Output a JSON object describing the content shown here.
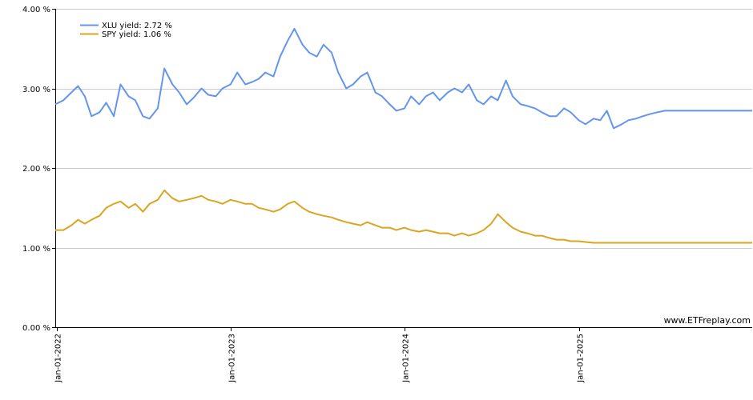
{
  "watermark": "www.ETFreplay.com",
  "chart_data": {
    "type": "line",
    "ylim": [
      0,
      4
    ],
    "y_ticks": [
      {
        "value": 0,
        "label": "0.00 %"
      },
      {
        "value": 1,
        "label": "1.00 %"
      },
      {
        "value": 2,
        "label": "2.00 %"
      },
      {
        "value": 3,
        "label": "3.00 %"
      },
      {
        "value": 4,
        "label": "4.00 %"
      }
    ],
    "x_range": [
      "2021-12-29",
      "2025-12-31"
    ],
    "x_ticks": [
      {
        "date": "2022-01-01",
        "label": "Jan-01-2022"
      },
      {
        "date": "2023-01-01",
        "label": "Jan-01-2023"
      },
      {
        "date": "2024-01-01",
        "label": "Jan-01-2024"
      },
      {
        "date": "2025-01-01",
        "label": "Jan-01-2025"
      }
    ],
    "grid": true,
    "legend": "top-left",
    "series": [
      {
        "name": "XLU yield: 2.72 %",
        "color": "#6495ed",
        "x": [
          "2021-12-29",
          "2022-01-15",
          "2022-02-01",
          "2022-02-15",
          "2022-03-01",
          "2022-03-15",
          "2022-04-01",
          "2022-04-15",
          "2022-05-01",
          "2022-05-15",
          "2022-06-01",
          "2022-06-15",
          "2022-07-01",
          "2022-07-15",
          "2022-08-01",
          "2022-08-15",
          "2022-09-01",
          "2022-09-15",
          "2022-10-01",
          "2022-10-15",
          "2022-11-01",
          "2022-11-15",
          "2022-12-01",
          "2022-12-15",
          "2023-01-01",
          "2023-01-15",
          "2023-02-01",
          "2023-02-15",
          "2023-03-01",
          "2023-03-15",
          "2023-04-01",
          "2023-04-15",
          "2023-05-01",
          "2023-05-15",
          "2023-06-01",
          "2023-06-15",
          "2023-07-01",
          "2023-07-15",
          "2023-08-01",
          "2023-08-15",
          "2023-09-01",
          "2023-09-15",
          "2023-10-01",
          "2023-10-15",
          "2023-11-01",
          "2023-11-15",
          "2023-12-01",
          "2023-12-15",
          "2024-01-01",
          "2024-01-15",
          "2024-02-01",
          "2024-02-15",
          "2024-03-01",
          "2024-03-15",
          "2024-04-01",
          "2024-04-15",
          "2024-05-01",
          "2024-05-15",
          "2024-06-01",
          "2024-06-15",
          "2024-07-01",
          "2024-07-15",
          "2024-08-01",
          "2024-08-15",
          "2024-09-01",
          "2024-09-15",
          "2024-10-01",
          "2024-10-15",
          "2024-11-01",
          "2024-11-15",
          "2024-12-01",
          "2024-12-15",
          "2025-01-01",
          "2025-01-15",
          "2025-02-01",
          "2025-02-15",
          "2025-03-01",
          "2025-03-15",
          "2025-04-01",
          "2025-04-15",
          "2025-05-01",
          "2025-05-15",
          "2025-06-01",
          "2025-06-15",
          "2025-07-01",
          "2025-07-15",
          "2025-08-01",
          "2025-08-15",
          "2025-09-01",
          "2025-09-15",
          "2025-10-01",
          "2025-10-15",
          "2025-11-01",
          "2025-11-15",
          "2025-12-01",
          "2025-12-15",
          "2025-12-31"
        ],
        "values": [
          2.8,
          2.85,
          2.95,
          3.03,
          2.9,
          2.65,
          2.7,
          2.82,
          2.65,
          3.05,
          2.9,
          2.85,
          2.65,
          2.62,
          2.75,
          3.25,
          3.05,
          2.95,
          2.8,
          2.88,
          3.0,
          2.92,
          2.9,
          3.0,
          3.05,
          3.2,
          3.05,
          3.08,
          3.12,
          3.2,
          3.15,
          3.4,
          3.6,
          3.75,
          3.55,
          3.45,
          3.4,
          3.55,
          3.45,
          3.2,
          3.0,
          3.05,
          3.15,
          3.2,
          2.95,
          2.9,
          2.8,
          2.72,
          2.75,
          2.9,
          2.8,
          2.9,
          2.95,
          2.85,
          2.95,
          3.0,
          2.95,
          3.05,
          2.85,
          2.8,
          2.9,
          2.85,
          3.1,
          2.9,
          2.8,
          2.78,
          2.75,
          2.7,
          2.65,
          2.65,
          2.75,
          2.7,
          2.6,
          2.55,
          2.62,
          2.6,
          2.72,
          2.5,
          2.55,
          2.6,
          2.62,
          2.65,
          2.68,
          2.7,
          2.72,
          2.72,
          2.72,
          2.72,
          2.72,
          2.72,
          2.72,
          2.72,
          2.72,
          2.72,
          2.72,
          2.72,
          2.72
        ]
      },
      {
        "name": "SPY yield: 1.06 %",
        "color": "#daa520",
        "x": [
          "2021-12-29",
          "2022-01-15",
          "2022-02-01",
          "2022-02-15",
          "2022-03-01",
          "2022-03-15",
          "2022-04-01",
          "2022-04-15",
          "2022-05-01",
          "2022-05-15",
          "2022-06-01",
          "2022-06-15",
          "2022-07-01",
          "2022-07-15",
          "2022-08-01",
          "2022-08-15",
          "2022-09-01",
          "2022-09-15",
          "2022-10-01",
          "2022-10-15",
          "2022-11-01",
          "2022-11-15",
          "2022-12-01",
          "2022-12-15",
          "2023-01-01",
          "2023-01-15",
          "2023-02-01",
          "2023-02-15",
          "2023-03-01",
          "2023-03-15",
          "2023-04-01",
          "2023-04-15",
          "2023-05-01",
          "2023-05-15",
          "2023-06-01",
          "2023-06-15",
          "2023-07-01",
          "2023-07-15",
          "2023-08-01",
          "2023-08-15",
          "2023-09-01",
          "2023-09-15",
          "2023-10-01",
          "2023-10-15",
          "2023-11-01",
          "2023-11-15",
          "2023-12-01",
          "2023-12-15",
          "2024-01-01",
          "2024-01-15",
          "2024-02-01",
          "2024-02-15",
          "2024-03-01",
          "2024-03-15",
          "2024-04-01",
          "2024-04-15",
          "2024-05-01",
          "2024-05-15",
          "2024-06-01",
          "2024-06-15",
          "2024-07-01",
          "2024-07-15",
          "2024-08-01",
          "2024-08-15",
          "2024-09-01",
          "2024-09-15",
          "2024-10-01",
          "2024-10-15",
          "2024-11-01",
          "2024-11-15",
          "2024-12-01",
          "2024-12-15",
          "2025-01-01",
          "2025-01-15",
          "2025-02-01",
          "2025-02-15",
          "2025-03-01",
          "2025-03-15",
          "2025-04-01",
          "2025-04-15",
          "2025-05-01",
          "2025-05-15",
          "2025-06-01",
          "2025-06-15",
          "2025-07-01",
          "2025-07-15",
          "2025-08-01",
          "2025-08-15",
          "2025-09-01",
          "2025-09-15",
          "2025-10-01",
          "2025-10-15",
          "2025-11-01",
          "2025-11-15",
          "2025-12-01",
          "2025-12-15",
          "2025-12-31"
        ],
        "values": [
          1.22,
          1.22,
          1.28,
          1.35,
          1.3,
          1.35,
          1.4,
          1.5,
          1.55,
          1.58,
          1.5,
          1.55,
          1.45,
          1.55,
          1.6,
          1.72,
          1.62,
          1.58,
          1.6,
          1.62,
          1.65,
          1.6,
          1.58,
          1.55,
          1.6,
          1.58,
          1.55,
          1.55,
          1.5,
          1.48,
          1.45,
          1.48,
          1.55,
          1.58,
          1.5,
          1.45,
          1.42,
          1.4,
          1.38,
          1.35,
          1.32,
          1.3,
          1.28,
          1.32,
          1.28,
          1.25,
          1.25,
          1.22,
          1.25,
          1.22,
          1.2,
          1.22,
          1.2,
          1.18,
          1.18,
          1.15,
          1.18,
          1.15,
          1.18,
          1.22,
          1.3,
          1.42,
          1.32,
          1.25,
          1.2,
          1.18,
          1.15,
          1.15,
          1.12,
          1.1,
          1.1,
          1.08,
          1.08,
          1.07,
          1.06,
          1.06,
          1.06,
          1.06,
          1.06,
          1.06,
          1.06,
          1.06,
          1.06,
          1.06,
          1.06,
          1.06,
          1.06,
          1.06,
          1.06,
          1.06,
          1.06,
          1.06,
          1.06,
          1.06,
          1.06,
          1.06,
          1.06
        ]
      }
    ]
  }
}
